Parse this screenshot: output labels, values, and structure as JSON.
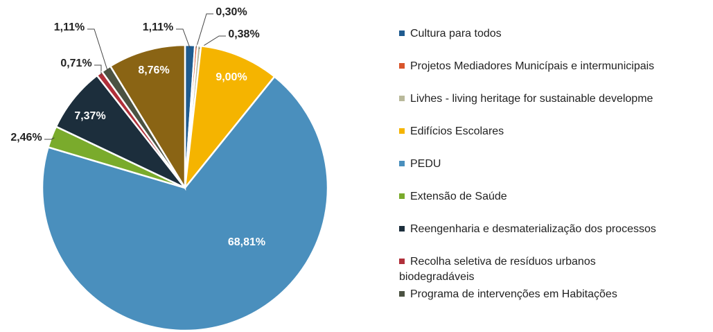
{
  "chart_data": {
    "type": "pie",
    "categories": [
      "Cultura para todos",
      "Projetos Mediadores Municípais e intermunicipais",
      "Livhes - living heritage for sustainable developme",
      "Edifícios Escolares",
      "PEDU",
      "Extensão de Saúde",
      "Reengenharia e desmaterialização dos processos",
      "Recolha seletiva de resíduos urbanos biodegradáveis",
      "Programa de intervenções em Habitações",
      null
    ],
    "values": [
      1.11,
      0.3,
      0.38,
      9.0,
      68.81,
      2.46,
      7.37,
      0.71,
      1.11,
      8.76
    ],
    "value_labels": [
      "1,11%",
      "0,30%",
      "0,38%",
      "9,00%",
      "68,81%",
      "2,46%",
      "7,37%",
      "0,71%",
      "1,11%",
      "8,76%"
    ],
    "colors": [
      "#1f5b8f",
      "#d9552b",
      "#b9b99b",
      "#f5b400",
      "#4a8fbd",
      "#7aab2c",
      "#1c2e3c",
      "#b0303a",
      "#4b5242",
      "#8a6414"
    ]
  }
}
